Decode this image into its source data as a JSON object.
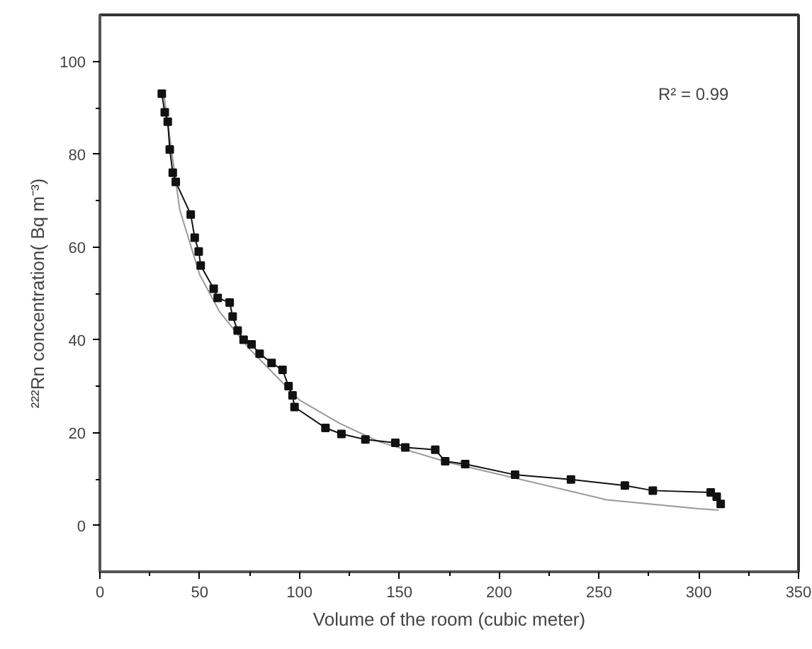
{
  "chart_data": {
    "type": "line",
    "xlabel": "Volume of the room (cubic meter)",
    "ylabel": "²²²Rn concentration( Bq m⁻³)",
    "xlim": [
      0,
      350
    ],
    "ylim": [
      -10,
      110
    ],
    "xticks": [
      0,
      50,
      100,
      150,
      200,
      250,
      300,
      350
    ],
    "yticks": [
      0,
      20,
      40,
      60,
      80,
      100
    ],
    "grid": false,
    "annotations": [
      "R² = 0.99"
    ],
    "series": [
      {
        "color": "#9a9a9a",
        "marker": "none",
        "line_style": "solid",
        "x": [
          32,
          40,
          50,
          60,
          75,
          100,
          120,
          140,
          175,
          200,
          254,
          300,
          310
        ],
        "values": [
          93,
          68,
          54,
          46,
          38,
          27,
          22,
          18,
          13.5,
          11,
          5.5,
          3.6,
          3.3
        ]
      },
      {
        "color": "#111111",
        "marker": "square",
        "line_style": "solid",
        "x": [
          31,
          32.5,
          34,
          35,
          36.5,
          38,
          45.5,
          47.5,
          49.5,
          50.5,
          57,
          59,
          65,
          66.5,
          69,
          72,
          76,
          80,
          86,
          91.5,
          94.5,
          96.5,
          97.5,
          113,
          121,
          133,
          148,
          153,
          168,
          173,
          183,
          208,
          236,
          263,
          277,
          306,
          309,
          311
        ],
        "values": [
          93,
          89,
          87,
          81,
          76,
          74,
          67,
          62,
          59,
          56,
          51,
          49,
          48,
          45,
          42,
          40,
          39,
          37,
          35,
          33.5,
          30,
          28,
          25.5,
          21,
          19.7,
          18.5,
          17.8,
          16.8,
          16.3,
          13.8,
          13.2,
          10.9,
          9.9,
          8.6,
          7.5,
          7.1,
          6.2,
          4.6
        ]
      }
    ]
  }
}
